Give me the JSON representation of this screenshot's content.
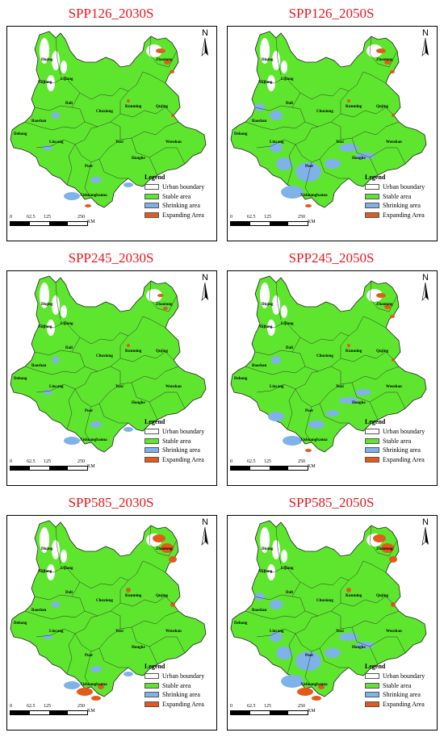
{
  "panels": [
    {
      "title": "SPP126_2030S",
      "shrink": "low",
      "expand": "mid"
    },
    {
      "title": "SPP126_2050S",
      "shrink": "high",
      "expand": "mid"
    },
    {
      "title": "SPP245_2030S",
      "shrink": "low",
      "expand": "low"
    },
    {
      "title": "SPP245_2050S",
      "shrink": "mid",
      "expand": "mid"
    },
    {
      "title": "SPP585_2030S",
      "shrink": "low",
      "expand": "high"
    },
    {
      "title": "SPP585_2050S",
      "shrink": "high",
      "expand": "high"
    }
  ],
  "north": "N",
  "legend": {
    "title": "Legend",
    "items": [
      {
        "label": "Urban boundary",
        "color": "#ffffff"
      },
      {
        "label": "Stable area",
        "color": "#5ee62e"
      },
      {
        "label": "Shrinking area",
        "color": "#7fb2e8"
      },
      {
        "label": "Expanding Area",
        "color": "#e25b1c"
      }
    ]
  },
  "scale": {
    "ticks": [
      "0",
      "62.5",
      "125",
      "250"
    ],
    "unit": "KM"
  },
  "cities": [
    "Diqing",
    "Nujiang",
    "Lijiang",
    "Zhaotong",
    "Dali",
    "Chuxiong",
    "Kunming",
    "Qujing",
    "Baoshan",
    "Dehong",
    "Lincang",
    "Yuxi",
    "Wenshan",
    "Puer",
    "Honghe",
    "Xishuangbanna"
  ]
}
